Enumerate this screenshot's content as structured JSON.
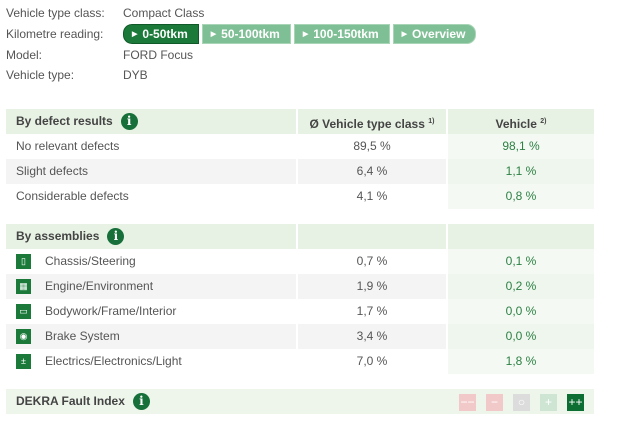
{
  "info": {
    "vehicle_type_class_label": "Vehicle type class:",
    "vehicle_type_class": "Compact Class",
    "km_label": "Kilometre reading:",
    "km_tabs": [
      {
        "label": "0-50tkm",
        "active": true
      },
      {
        "label": "50-100tkm"
      },
      {
        "label": "100-150tkm"
      },
      {
        "label": "Overview"
      }
    ],
    "model_label": "Model:",
    "model": "FORD Focus",
    "vehicle_type_label": "Vehicle type:",
    "vehicle_type": "DYB"
  },
  "defects": {
    "title": "By defect results",
    "col2": "Ø Vehicle type class",
    "col2_sup": "1)",
    "col3": "Vehicle",
    "col3_sup": "2)",
    "rows": [
      {
        "label": "No relevant defects",
        "class": "89,5 %",
        "vehicle": "98,1 %"
      },
      {
        "label": "Slight defects",
        "class": "6,4 %",
        "vehicle": "1,1 %"
      },
      {
        "label": "Considerable defects",
        "class": "4,1 %",
        "vehicle": "0,8 %"
      }
    ]
  },
  "assemblies": {
    "title": "By assemblies",
    "rows": [
      {
        "icon": "chassis-icon",
        "label": "Chassis/Steering",
        "class": "0,7 %",
        "vehicle": "0,1 %"
      },
      {
        "icon": "engine-icon",
        "label": "Engine/Environment",
        "class": "1,9 %",
        "vehicle": "0,2 %"
      },
      {
        "icon": "car-body-icon",
        "label": "Bodywork/Frame/Interior",
        "class": "1,7 %",
        "vehicle": "0,0 %"
      },
      {
        "icon": "brake-icon",
        "label": "Brake System",
        "class": "3,4 %",
        "vehicle": "0,0 %"
      },
      {
        "icon": "battery-icon",
        "label": "Electrics/Electronics/Light",
        "class": "7,0 %",
        "vehicle": "1,8 %"
      }
    ]
  },
  "fault_index": {
    "title": "DEKRA Fault Index",
    "scale": [
      {
        "symbol": "−−",
        "color": "#f2c9c9"
      },
      {
        "symbol": "−",
        "color": "#f2c9c9"
      },
      {
        "symbol": "○",
        "color": "#dcdcdc"
      },
      {
        "symbol": "+",
        "color": "#cfe5d4"
      },
      {
        "symbol": "++",
        "color": "#0d6e33",
        "selected": true
      }
    ]
  },
  "info_icon": "i"
}
